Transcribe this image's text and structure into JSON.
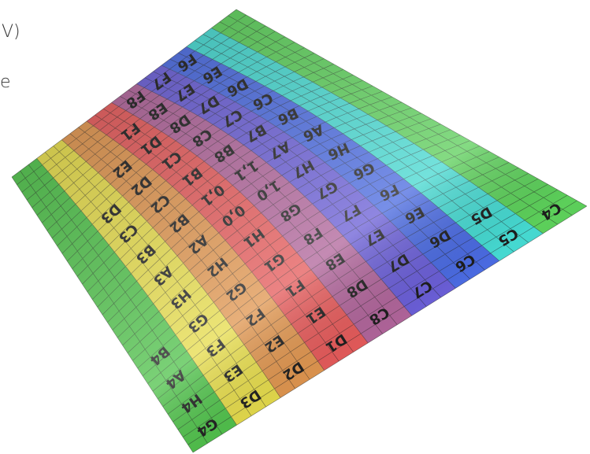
{
  "caption": {
    "lines": [
      "V)",
      "e"
    ]
  },
  "texture": {
    "bands": [
      {
        "color": "#4fc24a",
        "labels": [
          "B4",
          "A4",
          "H4",
          "G4"
        ]
      },
      {
        "color": "#e6dc4a",
        "labels": [
          "D3",
          "C3",
          "B3",
          "A3",
          "H3",
          "G3",
          "F3",
          "E3",
          "D3"
        ]
      },
      {
        "color": "#e0954e",
        "labels": [
          "E2",
          "D2",
          "C2",
          "B2",
          "A2",
          "H2",
          "G2",
          "F2",
          "E2",
          "D2"
        ]
      },
      {
        "color": "#e55a5a",
        "labels": [
          "F1",
          "D1",
          "C1",
          "B1",
          "0,1",
          "0,0",
          "H1",
          "G1",
          "F1",
          "E1",
          "D1"
        ]
      },
      {
        "color": "#b0649a",
        "labels": [
          "F8",
          "E8",
          "D8",
          "C8",
          "B8",
          "1,1",
          "1,0",
          "G8",
          "F8",
          "E8",
          "D8",
          "C8"
        ]
      },
      {
        "color": "#6a5ed6",
        "labels": [
          "F7",
          "E7",
          "D7",
          "C7",
          "B7",
          "A7",
          "H7",
          "G7",
          "F7",
          "E7",
          "D7",
          "C7"
        ]
      },
      {
        "color": "#4a6ae0",
        "labels": [
          "F6",
          "E6",
          "D6",
          "C6",
          "B6",
          "A6",
          "H6",
          "G6",
          "F6",
          "E6",
          "D6",
          "C6"
        ]
      },
      {
        "color": "#45d8d0",
        "labels": [
          "D5",
          "C5"
        ]
      },
      {
        "color": "#5ccf5a",
        "labels": [
          "C4"
        ]
      }
    ]
  }
}
